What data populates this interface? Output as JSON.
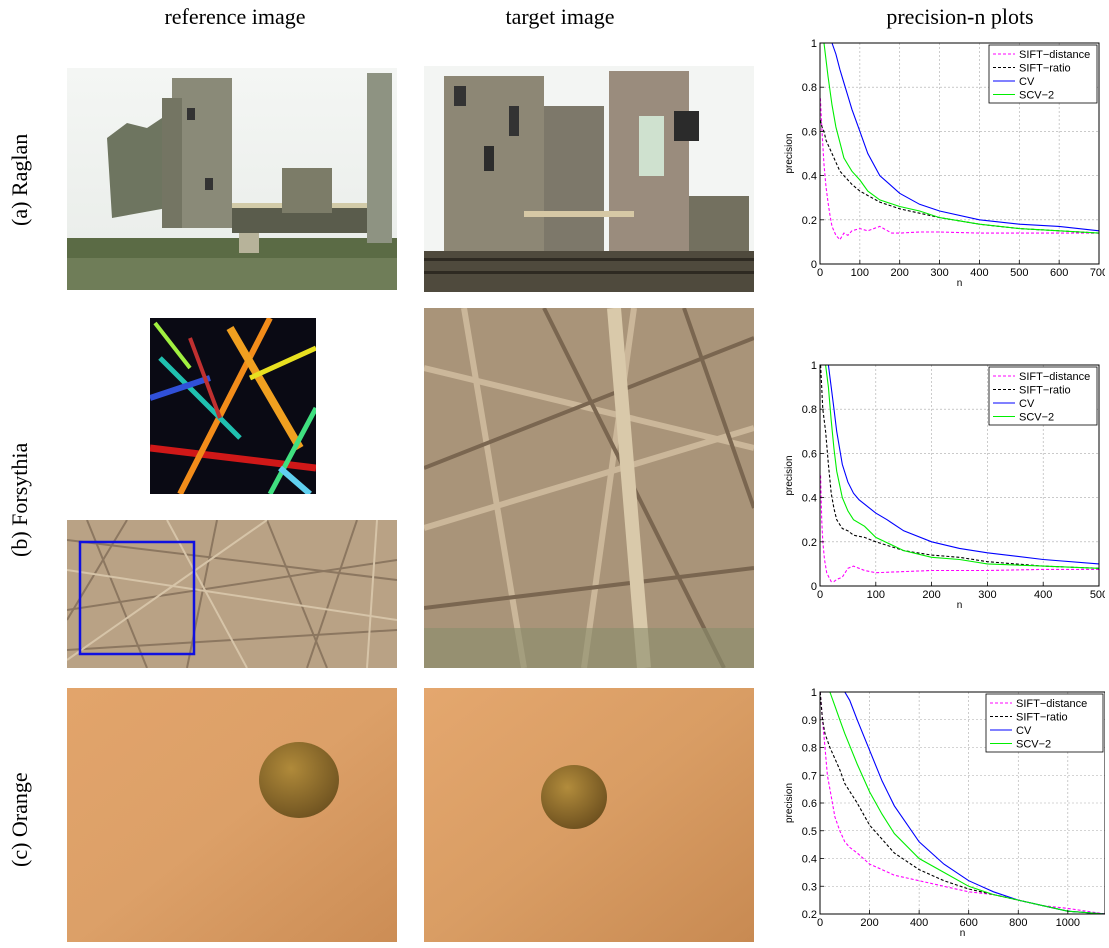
{
  "headers": {
    "reference": "reference image",
    "target": "target image",
    "plots": "precision-n plots"
  },
  "rows": [
    {
      "label": "(a) Raglan"
    },
    {
      "label": "(b) Forsythia"
    },
    {
      "label": "(c) Orange"
    }
  ],
  "colors": {
    "sift_distance": "#ff00ff",
    "sift_ratio": "#000000",
    "cv": "#0000ff",
    "scv2": "#00ee00",
    "forsythia_box": "#1010e0"
  },
  "chart_data": [
    {
      "type": "line",
      "xlabel": "n",
      "ylabel": "precision",
      "xlim": [
        0,
        700
      ],
      "ylim": [
        0,
        1
      ],
      "xticks": [
        0,
        100,
        200,
        300,
        400,
        500,
        600,
        700
      ],
      "yticks": [
        0,
        0.2,
        0.4,
        0.6,
        0.8,
        1
      ],
      "ytick_labels": [
        "0",
        "0.2",
        "0.4",
        "0.6",
        "0.8",
        "1"
      ],
      "grid": true,
      "legend_position": "top-right",
      "series": [
        {
          "name": "SIFT−distance",
          "style": "dashed",
          "x": [
            1,
            5,
            10,
            15,
            20,
            25,
            30,
            40,
            50,
            60,
            70,
            80,
            100,
            120,
            150,
            180,
            200,
            250,
            300,
            400,
            500,
            600,
            700
          ],
          "y": [
            0.75,
            0.6,
            0.45,
            0.35,
            0.28,
            0.22,
            0.17,
            0.13,
            0.11,
            0.14,
            0.13,
            0.15,
            0.16,
            0.15,
            0.17,
            0.14,
            0.14,
            0.145,
            0.145,
            0.14,
            0.14,
            0.14,
            0.14
          ]
        },
        {
          "name": "SIFT−ratio",
          "style": "dashed",
          "x": [
            1,
            5,
            10,
            15,
            20,
            25,
            30,
            40,
            50,
            60,
            70,
            80,
            100,
            120,
            150,
            200,
            250,
            300,
            400,
            500,
            600,
            700
          ],
          "y": [
            0.65,
            0.62,
            0.6,
            0.56,
            0.54,
            0.52,
            0.5,
            0.46,
            0.42,
            0.4,
            0.38,
            0.36,
            0.33,
            0.31,
            0.28,
            0.25,
            0.23,
            0.21,
            0.18,
            0.16,
            0.15,
            0.14
          ]
        },
        {
          "name": "CV",
          "style": "solid",
          "x": [
            1,
            30,
            40,
            50,
            60,
            70,
            80,
            100,
            120,
            150,
            200,
            250,
            300,
            400,
            500,
            600,
            700
          ],
          "y": [
            1,
            1,
            0.95,
            0.88,
            0.82,
            0.76,
            0.7,
            0.6,
            0.5,
            0.4,
            0.32,
            0.27,
            0.24,
            0.2,
            0.18,
            0.17,
            0.15
          ]
        },
        {
          "name": "SCV−2",
          "style": "solid",
          "x": [
            1,
            10,
            20,
            30,
            40,
            50,
            60,
            70,
            80,
            100,
            120,
            150,
            200,
            250,
            300,
            400,
            500,
            600,
            700
          ],
          "y": [
            1,
            1,
            0.85,
            0.72,
            0.62,
            0.55,
            0.48,
            0.45,
            0.42,
            0.38,
            0.33,
            0.29,
            0.26,
            0.24,
            0.21,
            0.18,
            0.16,
            0.15,
            0.14
          ]
        }
      ]
    },
    {
      "type": "line",
      "xlabel": "n",
      "ylabel": "precision",
      "xlim": [
        0,
        500
      ],
      "ylim": [
        0,
        1
      ],
      "xticks": [
        0,
        100,
        200,
        300,
        400,
        500
      ],
      "yticks": [
        0,
        0.2,
        0.4,
        0.6,
        0.8,
        1
      ],
      "ytick_labels": [
        "0",
        "0.2",
        "0.4",
        "0.6",
        "0.8",
        "1"
      ],
      "grid": true,
      "legend_position": "top-right",
      "series": [
        {
          "name": "SIFT−distance",
          "style": "dashed",
          "x": [
            1,
            3,
            5,
            8,
            12,
            16,
            20,
            25,
            30,
            40,
            50,
            60,
            80,
            100,
            150,
            200,
            300,
            400,
            500
          ],
          "y": [
            0.5,
            0.3,
            0.2,
            0.12,
            0.06,
            0.04,
            0.02,
            0.02,
            0.03,
            0.04,
            0.08,
            0.09,
            0.07,
            0.06,
            0.065,
            0.07,
            0.07,
            0.075,
            0.075
          ]
        },
        {
          "name": "SIFT−ratio",
          "style": "dashed",
          "x": [
            1,
            3,
            5,
            10,
            15,
            20,
            25,
            30,
            40,
            50,
            60,
            80,
            100,
            150,
            200,
            250,
            300,
            400,
            500
          ],
          "y": [
            1,
            0.9,
            0.8,
            0.7,
            0.55,
            0.42,
            0.35,
            0.3,
            0.26,
            0.25,
            0.23,
            0.22,
            0.2,
            0.16,
            0.14,
            0.13,
            0.11,
            0.09,
            0.08
          ]
        },
        {
          "name": "CV",
          "style": "solid",
          "x": [
            1,
            15,
            20,
            25,
            30,
            40,
            50,
            60,
            70,
            80,
            100,
            120,
            150,
            200,
            250,
            300,
            400,
            500
          ],
          "y": [
            1,
            1,
            0.9,
            0.8,
            0.7,
            0.55,
            0.47,
            0.42,
            0.39,
            0.37,
            0.33,
            0.3,
            0.25,
            0.2,
            0.17,
            0.15,
            0.12,
            0.1
          ]
        },
        {
          "name": "SCV−2",
          "style": "solid",
          "x": [
            1,
            10,
            15,
            20,
            25,
            30,
            40,
            50,
            60,
            80,
            100,
            150,
            200,
            250,
            300,
            400,
            500
          ],
          "y": [
            1,
            1,
            0.9,
            0.75,
            0.62,
            0.52,
            0.4,
            0.34,
            0.3,
            0.27,
            0.22,
            0.16,
            0.13,
            0.12,
            0.1,
            0.09,
            0.08
          ]
        }
      ]
    },
    {
      "type": "line",
      "xlabel": "n",
      "ylabel": "precision",
      "xlim": [
        0,
        1150
      ],
      "ylim": [
        0.2,
        1
      ],
      "xticks": [
        0,
        200,
        400,
        600,
        800,
        1000
      ],
      "yticks": [
        0.2,
        0.3,
        0.4,
        0.5,
        0.6,
        0.7,
        0.8,
        0.9,
        1
      ],
      "ytick_labels": [
        "0.2",
        "0.3",
        "0.4",
        "0.5",
        "0.6",
        "0.7",
        "0.8",
        "0.9",
        "1"
      ],
      "grid": true,
      "legend_position": "top-right",
      "series": [
        {
          "name": "SIFT−distance",
          "style": "dashed",
          "x": [
            1,
            10,
            20,
            30,
            40,
            50,
            60,
            80,
            100,
            120,
            150,
            200,
            250,
            300,
            400,
            500,
            600,
            700,
            800,
            900,
            1000,
            1150
          ],
          "y": [
            1,
            0.9,
            0.8,
            0.7,
            0.65,
            0.6,
            0.55,
            0.5,
            0.46,
            0.44,
            0.42,
            0.38,
            0.36,
            0.34,
            0.32,
            0.3,
            0.28,
            0.27,
            0.25,
            0.23,
            0.22,
            0.2
          ]
        },
        {
          "name": "SIFT−ratio",
          "style": "dashed",
          "x": [
            1,
            10,
            20,
            40,
            60,
            80,
            100,
            150,
            200,
            250,
            300,
            400,
            500,
            600,
            700,
            800,
            900,
            1000,
            1150
          ],
          "y": [
            1,
            0.9,
            0.85,
            0.8,
            0.76,
            0.72,
            0.67,
            0.6,
            0.52,
            0.47,
            0.42,
            0.36,
            0.32,
            0.29,
            0.27,
            0.25,
            0.23,
            0.21,
            0.2
          ]
        },
        {
          "name": "CV",
          "style": "solid",
          "x": [
            1,
            100,
            120,
            150,
            200,
            250,
            300,
            400,
            500,
            600,
            700,
            800,
            900,
            1000,
            1150
          ],
          "y": [
            1,
            1,
            0.97,
            0.9,
            0.79,
            0.68,
            0.59,
            0.46,
            0.38,
            0.32,
            0.28,
            0.25,
            0.23,
            0.21,
            0.2
          ]
        },
        {
          "name": "SCV−2",
          "style": "solid",
          "x": [
            1,
            40,
            60,
            80,
            100,
            150,
            200,
            250,
            300,
            400,
            500,
            600,
            700,
            800,
            900,
            1000,
            1150
          ],
          "y": [
            1,
            1,
            0.95,
            0.9,
            0.85,
            0.74,
            0.64,
            0.56,
            0.49,
            0.4,
            0.35,
            0.3,
            0.27,
            0.25,
            0.23,
            0.21,
            0.2
          ]
        }
      ]
    }
  ]
}
